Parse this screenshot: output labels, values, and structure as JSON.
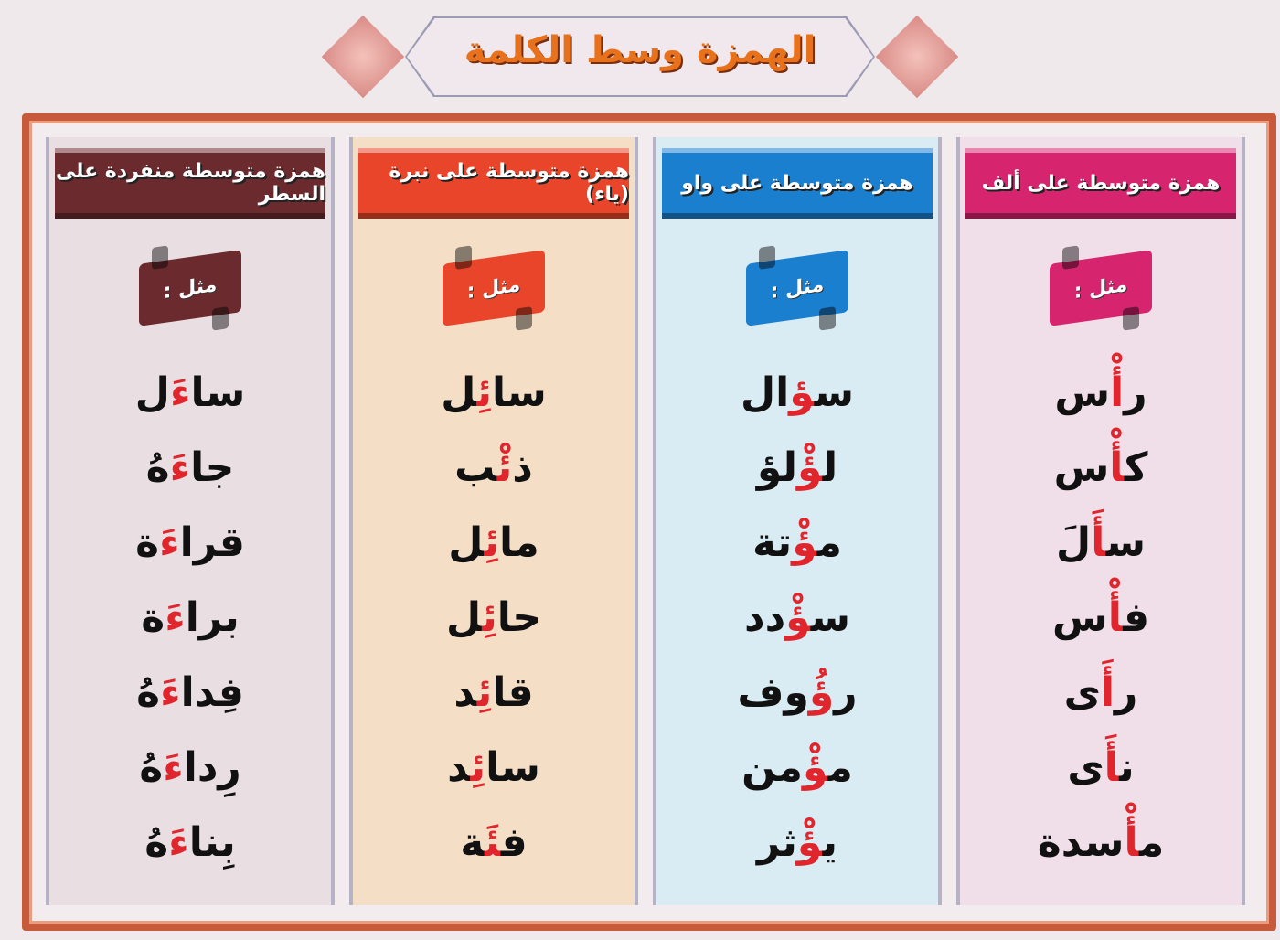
{
  "title": "الهمزة وسط الكلمة",
  "example_label": "مثل :",
  "colors": {
    "alif": "#d6246e",
    "waw": "#1b7fcf",
    "ya": "#e8452a",
    "line": "#6b2a2e",
    "hamza": "#e0262c"
  },
  "columns": [
    {
      "key": "alif",
      "header": "همزة متوسطة على ألف",
      "bg": "#f0dfe8",
      "words": [
        [
          "ر",
          "أْ",
          "س"
        ],
        [
          "ك",
          "أْ",
          "س"
        ],
        [
          "س",
          "أَ",
          "لَ"
        ],
        [
          "ف",
          "أْ",
          "س"
        ],
        [
          "ر",
          "أَ",
          "ى"
        ],
        [
          "ن",
          "أَ",
          "ى"
        ],
        [
          "م",
          "أْ",
          "سدة"
        ]
      ]
    },
    {
      "key": "waw",
      "header": "همزة متوسطة على واو",
      "bg": "#d9ecf3",
      "words": [
        [
          "س",
          "ؤ",
          "ال"
        ],
        [
          "ل",
          "ؤْ",
          "لؤ"
        ],
        [
          "م",
          "ؤْ",
          "تة"
        ],
        [
          "س",
          "ؤْ",
          "دد"
        ],
        [
          "ر",
          "ؤُ",
          "وف"
        ],
        [
          "م",
          "ؤْ",
          "من"
        ],
        [
          "ي",
          "ؤْ",
          "ثر"
        ]
      ]
    },
    {
      "key": "ya",
      "header": "همزة متوسطة على نبرة (ياء)",
      "bg": "#f4dec6",
      "words": [
        [
          "سا",
          "ئِ",
          "ل"
        ],
        [
          "ذ",
          "ئْ",
          "ب"
        ],
        [
          "ما",
          "ئِ",
          "ل"
        ],
        [
          "حا",
          "ئِ",
          "ل"
        ],
        [
          "قا",
          "ئِ",
          "د"
        ],
        [
          "سا",
          "ئِ",
          "د"
        ],
        [
          "ف",
          "ئَ",
          "ة"
        ]
      ]
    },
    {
      "key": "line",
      "header": "همزة متوسطة منفردة على السطر",
      "bg": "#e9dfe3",
      "words": [
        [
          "سا",
          "ءَ",
          "ل"
        ],
        [
          "جا",
          "ءَ",
          "هُ"
        ],
        [
          "قرا",
          "ءَ",
          "ة"
        ],
        [
          "برا",
          "ءَ",
          "ة"
        ],
        [
          "فِدا",
          "ءَ",
          "هُ"
        ],
        [
          "رِدا",
          "ءَ",
          "هُ"
        ],
        [
          "بِنا",
          "ءَ",
          "هُ"
        ]
      ]
    }
  ]
}
